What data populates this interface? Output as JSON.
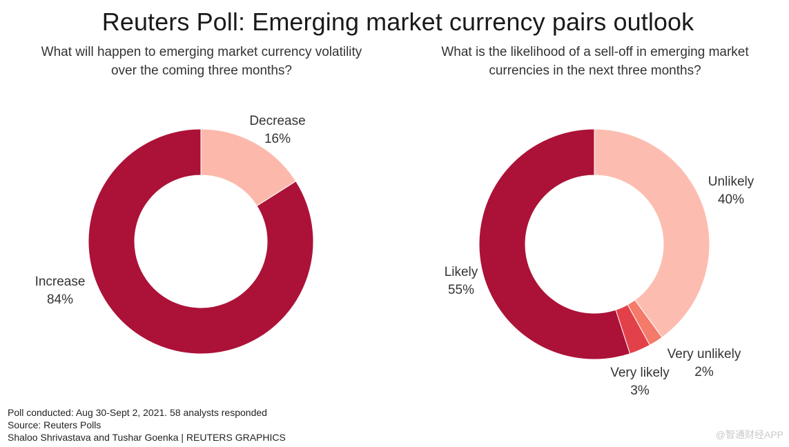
{
  "title": "Reuters Poll: Emerging market currency pairs outlook",
  "chart_data": [
    {
      "type": "pie",
      "title": "What will happen to emerging market currency volatility\nover the coming three months?",
      "categories": [
        "Decrease",
        "Increase"
      ],
      "values": [
        16,
        84
      ],
      "labels": [
        "16%",
        "84%"
      ],
      "colors": [
        "#fcb9ab",
        "#ac1238"
      ]
    },
    {
      "type": "pie",
      "title": "What is the likelihood of a sell-off in emerging market\ncurrencies in the next three months?",
      "categories": [
        "Unlikely",
        "Very unlikely",
        "Very likely",
        "Likely"
      ],
      "values": [
        40,
        2,
        3,
        55
      ],
      "labels": [
        "40%",
        "2%",
        "3%",
        "55%"
      ],
      "colors": [
        "#fcbdb0",
        "#f47a6a",
        "#e3414a",
        "#ac1238"
      ]
    }
  ],
  "footer": {
    "line1": "Poll conducted: Aug 30-Sept 2, 2021. 58 analysts responded",
    "line2": "Source: Reuters Polls",
    "line3": "Shaloo Shrivastava and Tushar Goenka | REUTERS GRAPHICS"
  },
  "watermark": "@智通财经APP"
}
